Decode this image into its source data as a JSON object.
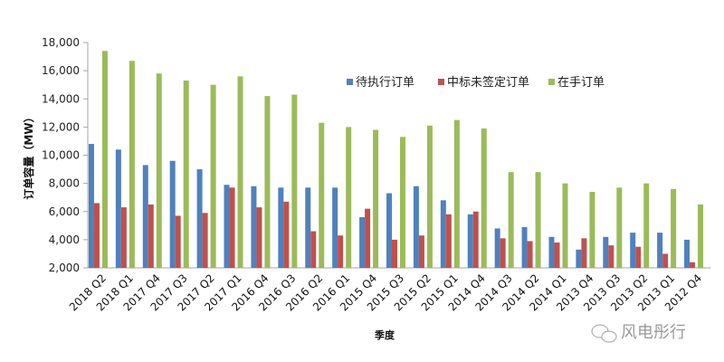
{
  "chart_data": {
    "type": "bar",
    "title": "",
    "xlabel": "季度",
    "ylabel": "订单容量（MW）",
    "ylim": [
      2000,
      18000
    ],
    "yticks": [
      2000,
      4000,
      6000,
      8000,
      10000,
      12000,
      14000,
      16000,
      18000
    ],
    "ytick_labels": [
      "2,000",
      "4,000",
      "6,000",
      "8,000",
      "10,000",
      "12,000",
      "14,000",
      "16,000",
      "18,000"
    ],
    "grid": false,
    "legend_position": "top-right inside",
    "categories": [
      "2018 Q2",
      "2018 Q1",
      "2017 Q4",
      "2017 Q3",
      "2017 Q2",
      "2017 Q1",
      "2016 Q4",
      "2016 Q3",
      "2016 Q2",
      "2016 Q1",
      "2015 Q4",
      "2015 Q3",
      "2015 Q2",
      "2015 Q1",
      "2014 Q4",
      "2014 Q3",
      "2014 Q2",
      "2014 Q1",
      "2013 Q4",
      "2013 Q3",
      "2013 Q2",
      "2013 Q1",
      "2012 Q4"
    ],
    "series": [
      {
        "name": "待执行订单",
        "color": "#4f81bd",
        "values": [
          10800,
          10400,
          9300,
          9600,
          9000,
          7900,
          7800,
          7700,
          7700,
          7700,
          5600,
          7300,
          7800,
          6800,
          5800,
          4800,
          4900,
          4200,
          3300,
          4200,
          4500,
          4500,
          4000
        ]
      },
      {
        "name": "中标未签定订单",
        "color": "#c0504d",
        "values": [
          6600,
          6300,
          6500,
          5700,
          5900,
          7700,
          6300,
          6700,
          4600,
          4300,
          6200,
          4000,
          4300,
          5800,
          6000,
          4100,
          3900,
          3800,
          4100,
          3600,
          3500,
          3000,
          2400
        ]
      },
      {
        "name": "在手订单",
        "color": "#9bbb59",
        "values": [
          17400,
          16700,
          15800,
          15300,
          15000,
          15600,
          14200,
          14300,
          12300,
          12000,
          11800,
          11300,
          12100,
          12500,
          11900,
          8800,
          8800,
          8000,
          7400,
          7700,
          8000,
          7600,
          6500
        ]
      }
    ]
  },
  "watermark": {
    "icon": "wechat-icon",
    "text": "风电彤行"
  }
}
